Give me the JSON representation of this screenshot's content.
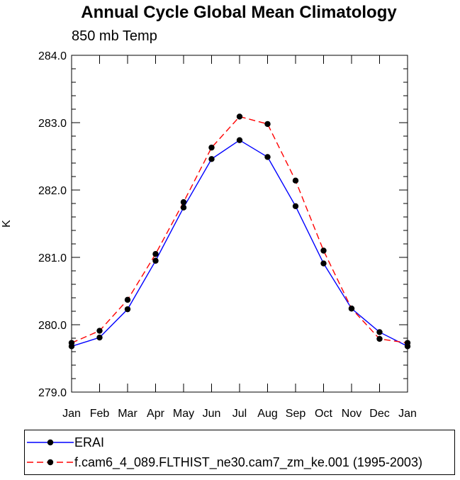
{
  "chart_data": {
    "type": "line",
    "title": "Annual Cycle Global Mean Climatology",
    "subtitle": "850 mb Temp",
    "ylabel": "K",
    "xlabel": "",
    "categories": [
      "Jan",
      "Feb",
      "Mar",
      "Apr",
      "May",
      "Jun",
      "Jul",
      "Aug",
      "Sep",
      "Oct",
      "Nov",
      "Dec",
      "Jan"
    ],
    "ylim": [
      279.0,
      284.0
    ],
    "yticks": [
      "279.0",
      "280.0",
      "281.0",
      "282.0",
      "283.0",
      "284.0"
    ],
    "series": [
      {
        "name": "ERAI",
        "color": "#0000ff",
        "style": "solid",
        "values": [
          279.68,
          279.81,
          280.23,
          280.95,
          281.74,
          282.46,
          282.74,
          282.49,
          281.76,
          280.91,
          280.24,
          279.89,
          279.68
        ]
      },
      {
        "name": "f.cam6_4_089.FLTHIST_ne30.cam7_zm_ke.001 (1995-2003)",
        "color": "#ff0000",
        "style": "dashed",
        "values": [
          279.73,
          279.91,
          280.37,
          281.05,
          281.82,
          282.63,
          283.09,
          282.98,
          282.14,
          281.1,
          280.24,
          279.79,
          279.73
        ]
      }
    ],
    "grid": false,
    "legend": "bottom"
  }
}
